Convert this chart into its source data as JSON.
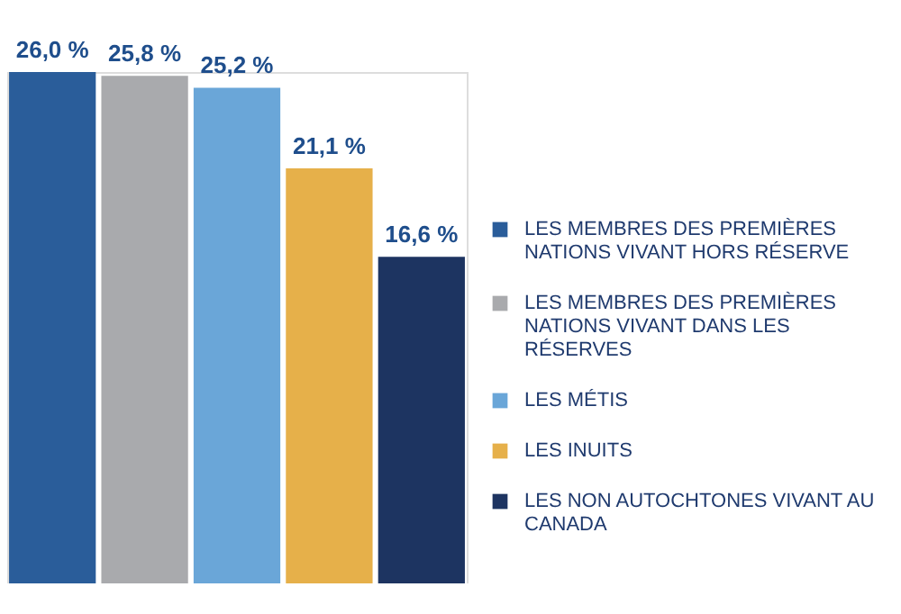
{
  "chart_data": {
    "type": "bar",
    "categories": [
      null
    ],
    "series": [
      {
        "name": "LES MEMBRES DES PREMIÈRES NATIONS VIVANT HORS RÉSERVE",
        "color": "#2a5d9a",
        "values": [
          26.0
        ],
        "value_labels": [
          "26,0 %"
        ]
      },
      {
        "name": "LES MEMBRES DES PREMIÈRES NATIONS VIVANT DANS LES RÉSERVES",
        "color": "#a9aaad",
        "values": [
          25.8
        ],
        "value_labels": [
          "25,8 %"
        ]
      },
      {
        "name": "LES MÉTIS",
        "color": "#6aa6d8",
        "values": [
          25.2
        ],
        "value_labels": [
          "25,2 %"
        ]
      },
      {
        "name": "LES INUITS",
        "color": "#e6b04a",
        "values": [
          21.1
        ],
        "value_labels": [
          "21,1 %"
        ]
      },
      {
        "name": "LES NON AUTOCHTONES VIVANT AU CANADA",
        "color": "#1d3461",
        "values": [
          16.6
        ],
        "value_labels": [
          "16,6 %"
        ]
      }
    ],
    "legend": "right",
    "tick_labels": false
  }
}
